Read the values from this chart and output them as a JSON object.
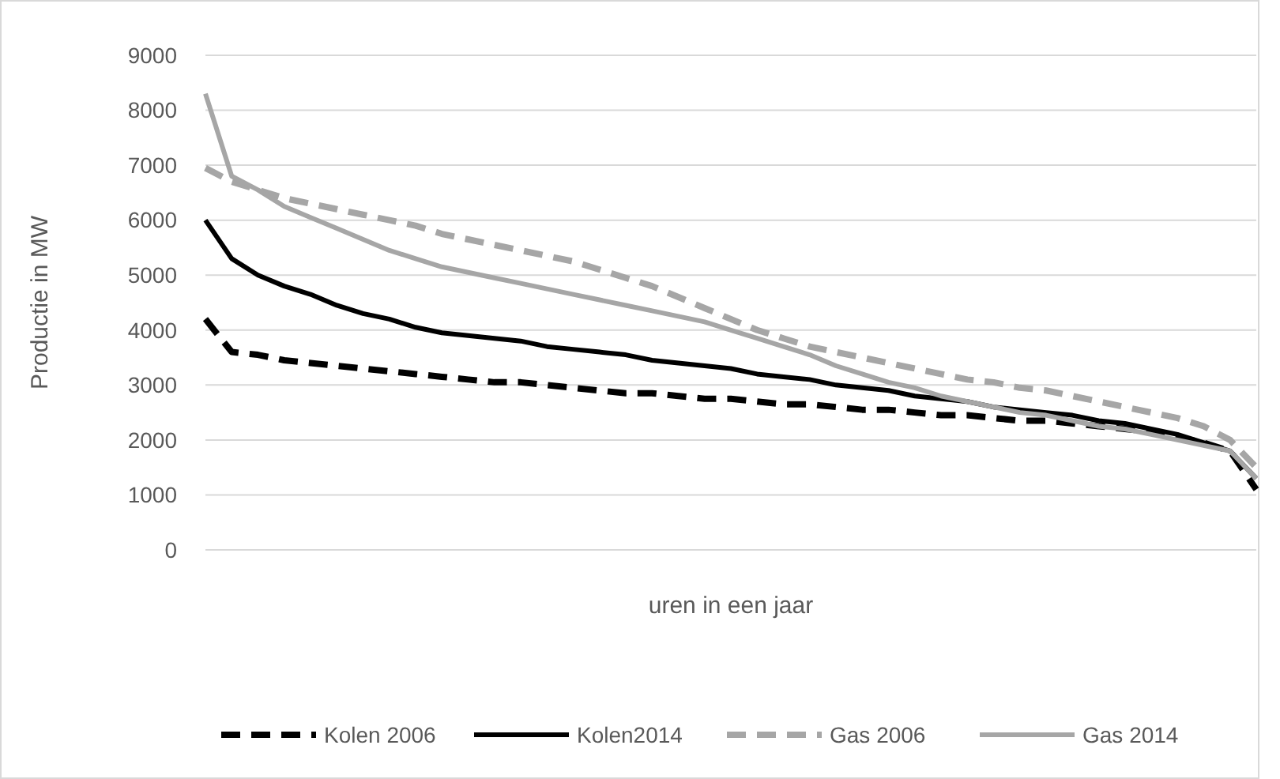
{
  "chart_data": {
    "type": "line",
    "ylabel": "Productie in MW",
    "xlabel": "uren in een jaar",
    "categories": [
      null,
      null,
      null,
      null,
      null,
      null,
      null,
      null,
      null,
      null,
      null,
      null,
      null,
      null,
      null,
      null,
      null,
      null,
      null,
      null,
      null,
      null,
      null,
      null,
      null,
      null,
      null,
      null,
      null,
      null,
      null,
      null,
      null,
      null,
      null,
      null,
      null,
      null,
      null,
      null,
      null
    ],
    "ylim": [
      0,
      9000
    ],
    "yticks": [
      0,
      1000,
      2000,
      3000,
      4000,
      5000,
      6000,
      7000,
      8000,
      9000
    ],
    "grid": "y",
    "legend": "bottom",
    "tick_labels": "y",
    "series": [
      {
        "name": "Kolen 2006",
        "color": "#000000",
        "line_style": "dashed",
        "values": [
          4200,
          3600,
          3550,
          3450,
          3400,
          3350,
          3300,
          3250,
          3200,
          3150,
          3100,
          3050,
          3050,
          3000,
          2950,
          2900,
          2850,
          2850,
          2800,
          2750,
          2750,
          2700,
          2650,
          2650,
          2600,
          2550,
          2550,
          2500,
          2450,
          2450,
          2400,
          2350,
          2350,
          2300,
          2250,
          2200,
          2150,
          2050,
          1950,
          1800,
          1100
        ]
      },
      {
        "name": "Kolen2014",
        "color": "#000000",
        "line_style": "solid",
        "values": [
          6000,
          5300,
          5000,
          4800,
          4650,
          4450,
          4300,
          4200,
          4050,
          3950,
          3900,
          3850,
          3800,
          3700,
          3650,
          3600,
          3550,
          3450,
          3400,
          3350,
          3300,
          3200,
          3150,
          3100,
          3000,
          2950,
          2900,
          2800,
          2750,
          2700,
          2600,
          2550,
          2500,
          2450,
          2350,
          2300,
          2200,
          2100,
          1950,
          1800,
          1300
        ]
      },
      {
        "name": "Gas 2006",
        "color": "#a6a6a6",
        "line_style": "dashed",
        "values": [
          6950,
          6700,
          6550,
          6400,
          6300,
          6200,
          6100,
          6000,
          5900,
          5750,
          5650,
          5550,
          5450,
          5350,
          5250,
          5100,
          4950,
          4800,
          4600,
          4400,
          4200,
          4000,
          3850,
          3700,
          3600,
          3500,
          3400,
          3300,
          3200,
          3100,
          3050,
          2950,
          2900,
          2800,
          2700,
          2600,
          2500,
          2400,
          2250,
          2000,
          1500
        ]
      },
      {
        "name": "Gas 2014",
        "color": "#a6a6a6",
        "line_style": "solid",
        "values": [
          8300,
          6800,
          6550,
          6250,
          6050,
          5850,
          5650,
          5450,
          5300,
          5150,
          5050,
          4950,
          4850,
          4750,
          4650,
          4550,
          4450,
          4350,
          4250,
          4150,
          4000,
          3850,
          3700,
          3550,
          3350,
          3200,
          3050,
          2950,
          2800,
          2700,
          2600,
          2500,
          2450,
          2350,
          2250,
          2200,
          2100,
          2000,
          1900,
          1800,
          1300
        ]
      }
    ]
  }
}
